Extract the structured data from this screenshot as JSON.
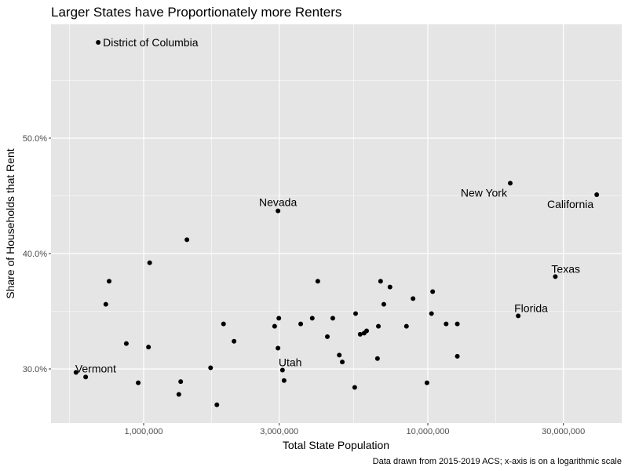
{
  "chart_data": {
    "type": "scatter",
    "title": "Larger States have Proportionately more Renters",
    "xlabel": "Total State Population",
    "ylabel": "Share of Households that Rent",
    "caption": "Data drawn from 2015-2019 ACS; x-axis is on a logarithmic scale",
    "x_scale": "log10",
    "x_ticks": [
      {
        "value": 1000000,
        "label": "1,000,000"
      },
      {
        "value": 3000000,
        "label": "3,000,000"
      },
      {
        "value": 10000000,
        "label": "10,000,000"
      },
      {
        "value": 30000000,
        "label": "30,000,000"
      }
    ],
    "y_ticks": [
      {
        "value": 30,
        "label": "30.0%"
      },
      {
        "value": 40,
        "label": "40.0%"
      },
      {
        "value": 50,
        "label": "50.0%"
      }
    ],
    "xlim": [
      510000,
      44000000
    ],
    "ylim": [
      25.4,
      60.2
    ],
    "grid": true,
    "legend": null,
    "colors": {
      "panel_bg": "#e5e5e5",
      "grid_major": "#ffffff",
      "point": "#000000"
    },
    "points": [
      {
        "x": 692000,
        "y": 58.3,
        "label": "District of Columbia",
        "label_pos": "right"
      },
      {
        "x": 2970000,
        "y": 43.7,
        "label": "Nevada",
        "label_pos": "top"
      },
      {
        "x": 19500000,
        "y": 46.1,
        "label": "New York",
        "label_pos": "bottom-left"
      },
      {
        "x": 39300000,
        "y": 45.1,
        "label": "California",
        "label_pos": "bottom-left"
      },
      {
        "x": 28100000,
        "y": 38.0,
        "label": "Texas",
        "label_pos": "top-right"
      },
      {
        "x": 20800000,
        "y": 34.6,
        "label": "Florida",
        "label_pos": "top-right"
      },
      {
        "x": 3080000,
        "y": 29.9,
        "label": "Utah",
        "label_pos": "top-right"
      },
      {
        "x": 578000,
        "y": 29.7,
        "label": "Vermont",
        "label_pos": "top-right"
      },
      {
        "x": 625000,
        "y": 29.3,
        "label": ""
      },
      {
        "x": 1420000,
        "y": 41.2,
        "label": ""
      },
      {
        "x": 1050000,
        "y": 39.2,
        "label": ""
      },
      {
        "x": 756000,
        "y": 37.6,
        "label": ""
      },
      {
        "x": 736000,
        "y": 35.6,
        "label": ""
      },
      {
        "x": 1910000,
        "y": 33.9,
        "label": ""
      },
      {
        "x": 2080000,
        "y": 32.4,
        "label": ""
      },
      {
        "x": 869000,
        "y": 32.2,
        "label": ""
      },
      {
        "x": 1040000,
        "y": 31.9,
        "label": ""
      },
      {
        "x": 1720000,
        "y": 30.1,
        "label": ""
      },
      {
        "x": 957000,
        "y": 28.8,
        "label": ""
      },
      {
        "x": 1350000,
        "y": 28.9,
        "label": ""
      },
      {
        "x": 1330000,
        "y": 27.8,
        "label": ""
      },
      {
        "x": 1810000,
        "y": 26.9,
        "label": ""
      },
      {
        "x": 4100000,
        "y": 37.6,
        "label": ""
      },
      {
        "x": 5570000,
        "y": 34.8,
        "label": ""
      },
      {
        "x": 2990000,
        "y": 34.4,
        "label": ""
      },
      {
        "x": 2890000,
        "y": 33.7,
        "label": ""
      },
      {
        "x": 3570000,
        "y": 33.9,
        "label": ""
      },
      {
        "x": 3920000,
        "y": 34.4,
        "label": ""
      },
      {
        "x": 4630000,
        "y": 34.4,
        "label": ""
      },
      {
        "x": 4430000,
        "y": 32.8,
        "label": ""
      },
      {
        "x": 5780000,
        "y": 33.0,
        "label": ""
      },
      {
        "x": 5970000,
        "y": 33.1,
        "label": ""
      },
      {
        "x": 6090000,
        "y": 33.3,
        "label": ""
      },
      {
        "x": 2970000,
        "y": 31.8,
        "label": ""
      },
      {
        "x": 4880000,
        "y": 31.2,
        "label": ""
      },
      {
        "x": 5000000,
        "y": 30.6,
        "label": ""
      },
      {
        "x": 3120000,
        "y": 29.0,
        "label": ""
      },
      {
        "x": 5530000,
        "y": 28.4,
        "label": ""
      },
      {
        "x": 6820000,
        "y": 37.6,
        "label": ""
      },
      {
        "x": 7360000,
        "y": 37.1,
        "label": ""
      },
      {
        "x": 10400000,
        "y": 36.7,
        "label": ""
      },
      {
        "x": 8870000,
        "y": 36.1,
        "label": ""
      },
      {
        "x": 7000000,
        "y": 35.6,
        "label": ""
      },
      {
        "x": 10300000,
        "y": 34.8,
        "label": ""
      },
      {
        "x": 11600000,
        "y": 33.9,
        "label": ""
      },
      {
        "x": 12700000,
        "y": 33.9,
        "label": ""
      },
      {
        "x": 6700000,
        "y": 33.7,
        "label": ""
      },
      {
        "x": 8410000,
        "y": 33.7,
        "label": ""
      },
      {
        "x": 6650000,
        "y": 30.9,
        "label": ""
      },
      {
        "x": 12700000,
        "y": 31.1,
        "label": ""
      },
      {
        "x": 9930000,
        "y": 28.8,
        "label": ""
      }
    ]
  }
}
